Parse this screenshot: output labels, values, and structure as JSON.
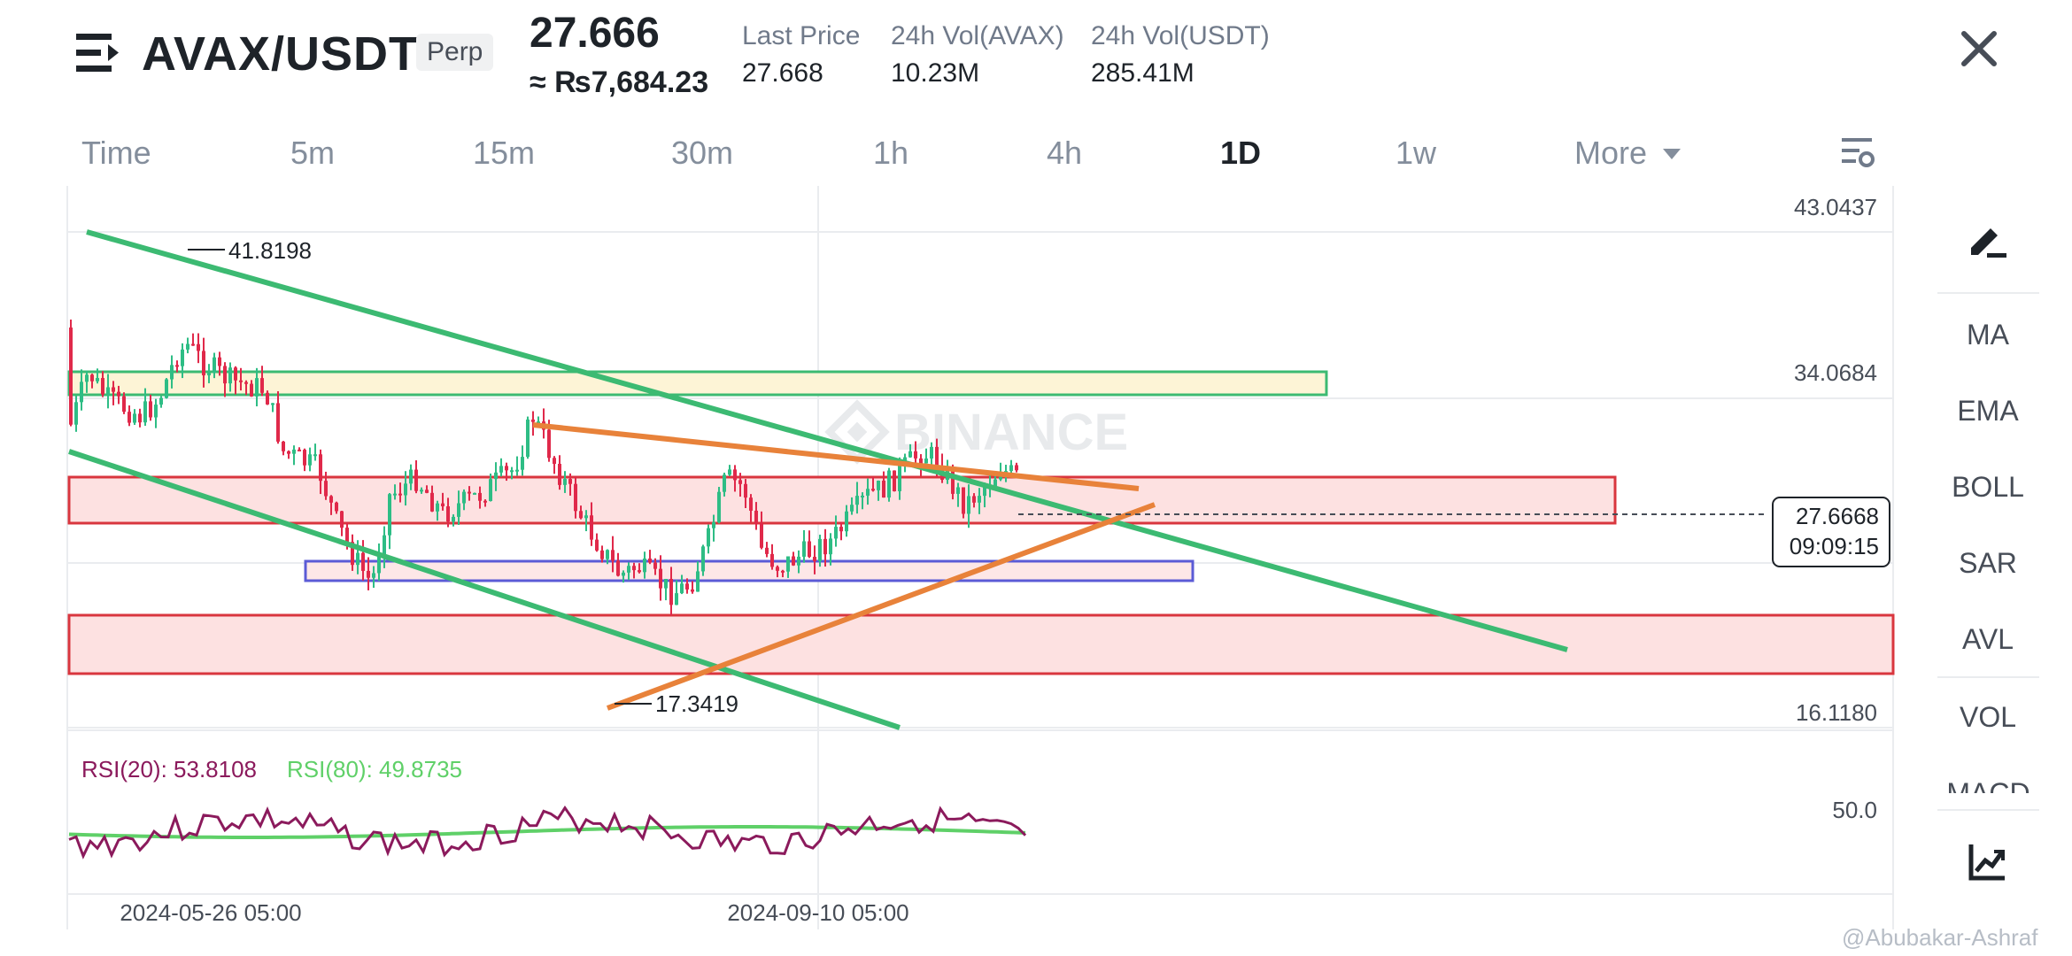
{
  "header": {
    "pair": "AVAX/USDT",
    "badge": "Perp",
    "price": "27.666",
    "price_inr": "≈ ₨7,684.23",
    "stats": [
      {
        "label": "Last Price",
        "value": "27.668"
      },
      {
        "label": "24h Vol(AVAX)",
        "value": "10.23M"
      },
      {
        "label": "24h Vol(USDT)",
        "value": "285.41M"
      }
    ]
  },
  "timeframes": [
    "Time",
    "5m",
    "15m",
    "30m",
    "1h",
    "4h",
    "1D",
    "1w",
    "More"
  ],
  "active_timeframe": "1D",
  "tools": [
    "MA",
    "EMA",
    "BOLL",
    "SAR",
    "AVL",
    "VOL",
    "MACD"
  ],
  "chart_data": {
    "type": "candlestick",
    "watermark": "BINANCE",
    "price_axis": [
      "43.0437",
      "34.0684",
      "16.1180"
    ],
    "y_range": [
      16.118,
      43.0437
    ],
    "high_label": "41.8198",
    "low_label": "17.3419",
    "current_price": "27.6668",
    "countdown": "09:09:15",
    "x_labels": [
      "2024-05-26 05:00",
      "2024-09-10 05:00"
    ],
    "rsi": {
      "rsi20_label": "RSI(20): 53.8108",
      "rsi80_label": "RSI(80): 49.8735",
      "level_label": "50.0",
      "rsi20_color": "#8b1a5c",
      "rsi80_color": "#5fd068"
    },
    "colors": {
      "up": "#2ebd85",
      "down": "#e0294a",
      "green_line": "#2ebd85",
      "orange_line": "#e8823a",
      "red_zone": "#d9363e",
      "blue_zone": "#5b5bd6"
    }
  },
  "footer": {
    "credit": "@Abubakar-Ashraf"
  }
}
